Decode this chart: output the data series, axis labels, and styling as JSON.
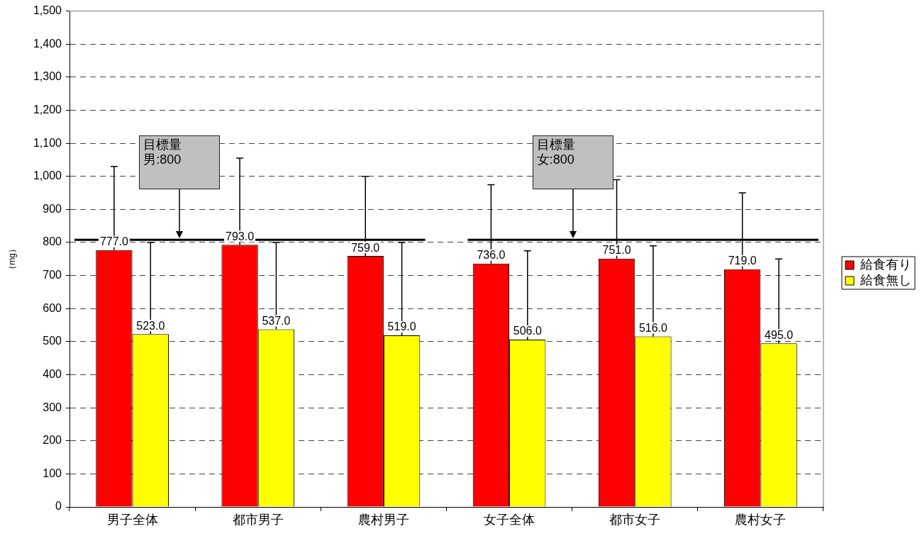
{
  "chart_data": {
    "type": "bar",
    "ylabel": "（mg）",
    "categories": [
      "男子全体",
      "都市男子",
      "農村男子",
      "女子全体",
      "都市女子",
      "農村女子"
    ],
    "series": [
      {
        "name": "給食有り",
        "color": "#ff0000",
        "values": [
          777,
          793,
          759,
          736,
          751,
          719
        ],
        "value_labels": [
          "777.0",
          "793.0",
          "759.0",
          "736.0",
          "751.0",
          "719.0"
        ],
        "errors": [
          [
            777,
            1030
          ],
          [
            793,
            1055
          ],
          [
            759,
            1000
          ],
          [
            736,
            975
          ],
          [
            751,
            990
          ],
          [
            719,
            950
          ]
        ]
      },
      {
        "name": "給食無し",
        "color": "#ffff00",
        "values": [
          523,
          537,
          519,
          506,
          516,
          495
        ],
        "value_labels": [
          "523.0",
          "537.0",
          "519.0",
          "506.0",
          "516.0",
          "495.0"
        ],
        "errors": [
          [
            523,
            800
          ],
          [
            537,
            800
          ],
          [
            519,
            800
          ],
          [
            506,
            775
          ],
          [
            516,
            790
          ],
          [
            495,
            750
          ]
        ]
      }
    ],
    "ylim": [
      0,
      1500
    ],
    "yticks": [
      0,
      100,
      200,
      300,
      400,
      500,
      600,
      700,
      800,
      900,
      {
        "value": 1000,
        "label": "1,000"
      },
      {
        "value": 1100,
        "label": "1,100"
      },
      {
        "value": 1200,
        "label": "1,200"
      },
      {
        "value": 1300,
        "label": "1,300"
      },
      {
        "value": 1400,
        "label": "1,400"
      },
      {
        "value": 1500,
        "label": "1,500"
      }
    ],
    "ref_lines": [
      {
        "axis": "y",
        "value": 808,
        "color": "#000000"
      }
    ],
    "annotations": [
      "目標量男:800",
      "目標量女:800"
    ],
    "grid": "y",
    "legend": "right"
  }
}
